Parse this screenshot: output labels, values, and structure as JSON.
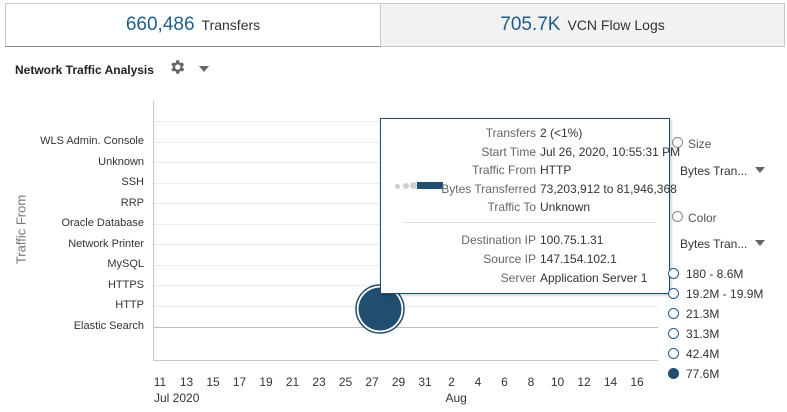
{
  "tabs": [
    {
      "value": "660,486",
      "label": "Transfers"
    },
    {
      "value": "705.7K",
      "label": "VCN Flow Logs"
    }
  ],
  "section": {
    "title": "Network Traffic Analysis"
  },
  "chart_data": {
    "type": "scatter",
    "ylabel": "Traffic From",
    "y_categories": [
      "WLS Admin. Console",
      "Unknown",
      "SSH",
      "RRP",
      "Oracle Database",
      "Network Printer",
      "MySQL",
      "HTTPS",
      "HTTP",
      "Elastic Search"
    ],
    "x_ticks": [
      "11",
      "13",
      "15",
      "17",
      "19",
      "21",
      "23",
      "25",
      "27",
      "29",
      "31",
      "2",
      "4",
      "6",
      "8",
      "10",
      "12",
      "14",
      "16"
    ],
    "x_groups": [
      {
        "label": "Jul 2020",
        "at": "11"
      },
      {
        "label": "Aug",
        "at": "2"
      }
    ],
    "points": [
      {
        "x": "27",
        "y": "HTTP",
        "size_label": "77.6M",
        "color_label": "77.6M"
      }
    ],
    "colors": {
      "bubble": "#1f4e6e",
      "accent": "#1f5d8c"
    }
  },
  "tooltip": {
    "rows": [
      {
        "key": "Transfers",
        "value": "2 (<1%)"
      },
      {
        "key": "Start Time",
        "value": "Jul 26, 2020, 10:55:31 PM"
      },
      {
        "key": "Traffic From",
        "value": "HTTP"
      },
      {
        "key": "Bytes Transferred",
        "value": "73,203,912 to 81,946,368"
      },
      {
        "key": "Traffic To",
        "value": "Unknown"
      }
    ],
    "rows2": [
      {
        "key": "Destination IP",
        "value": "100.75.1.31"
      },
      {
        "key": "Source IP",
        "value": "147.154.102.1"
      },
      {
        "key": "Server",
        "value": "Application Server 1"
      }
    ]
  },
  "legend": {
    "size_header": "Size",
    "size_select": "Bytes Tran...",
    "color_header": "Color",
    "color_select": "Bytes Tran...",
    "items": [
      {
        "label": "180 - 8.6M",
        "filled": false
      },
      {
        "label": "19.2M - 19.9M",
        "filled": false
      },
      {
        "label": "21.3M",
        "filled": false
      },
      {
        "label": "31.3M",
        "filled": false
      },
      {
        "label": "42.4M",
        "filled": false
      },
      {
        "label": "77.6M",
        "filled": true
      }
    ]
  },
  "icons": {
    "settings": "gear-icon",
    "menu": "chevron-down-icon"
  }
}
